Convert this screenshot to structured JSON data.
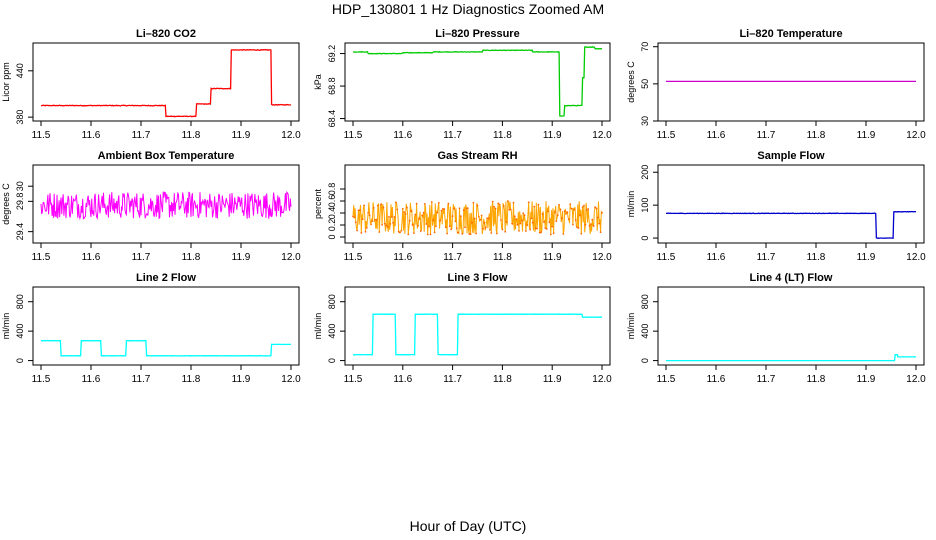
{
  "page": {
    "title": "HDP_130801  1 Hz Diagnostics Zoomed AM",
    "xlabel": "Hour of Day (UTC)"
  },
  "chart_data": [
    {
      "type": "line",
      "title": "Li–820 CO2",
      "ylabel": "Licor ppm",
      "color": "#ff0000",
      "xlim": [
        11.5,
        12.0
      ],
      "x_ticks": [
        "11.5",
        "11.6",
        "11.7",
        "11.8",
        "11.9",
        "12.0"
      ],
      "ylim": [
        375,
        476
      ],
      "y_ticks": [
        380,
        440
      ],
      "noise": 0.8,
      "segments": [
        [
          11.5,
          11.75,
          395
        ],
        [
          11.75,
          11.81,
          381
        ],
        [
          11.81,
          11.84,
          397
        ],
        [
          11.84,
          11.88,
          417
        ],
        [
          11.88,
          11.96,
          467
        ],
        [
          11.96,
          12.0,
          396
        ]
      ]
    },
    {
      "type": "line",
      "title": "Li–820 Pressure",
      "ylabel": "kPa",
      "color": "#00cc00",
      "xlim": [
        11.5,
        12.0
      ],
      "x_ticks": [
        "11.5",
        "11.6",
        "11.7",
        "11.8",
        "11.9",
        "12.0"
      ],
      "ylim": [
        68.37,
        69.33
      ],
      "y_ticks": [
        68.4,
        68.8,
        69.2
      ],
      "noise": 0.006,
      "segments": [
        [
          11.5,
          11.53,
          69.22
        ],
        [
          11.53,
          11.6,
          69.2
        ],
        [
          11.6,
          11.66,
          69.21
        ],
        [
          11.66,
          11.76,
          69.22
        ],
        [
          11.76,
          11.86,
          69.24
        ],
        [
          11.86,
          11.915,
          69.22
        ],
        [
          11.915,
          11.925,
          68.43
        ],
        [
          11.925,
          11.96,
          68.56
        ],
        [
          11.96,
          11.965,
          68.9
        ],
        [
          11.965,
          11.985,
          69.28
        ],
        [
          11.985,
          12.0,
          69.26
        ]
      ]
    },
    {
      "type": "line",
      "title": "Li–820 Temperature",
      "ylabel": "degrees C",
      "color": "#cc00cc",
      "xlim": [
        11.5,
        12.0
      ],
      "x_ticks": [
        "11.5",
        "11.6",
        "11.7",
        "11.8",
        "11.9",
        "12.0"
      ],
      "ylim": [
        30,
        72
      ],
      "y_ticks": [
        30,
        50,
        70
      ],
      "noise": 0,
      "segments": [
        [
          11.5,
          12.0,
          51.3
        ]
      ]
    },
    {
      "type": "line",
      "title": "Ambient Box Temperature",
      "ylabel": "degrees C",
      "color": "#ff00ff",
      "xlim": [
        11.5,
        12.0
      ],
      "x_ticks": [
        "11.5",
        "11.6",
        "11.7",
        "11.8",
        "11.9",
        "12.0"
      ],
      "ylim": [
        29.25,
        30.28
      ],
      "y_ticks": [
        29.4,
        29.8,
        30.0
      ],
      "noise": 0.18,
      "dense": true,
      "segments": [
        [
          11.5,
          12.0,
          29.75
        ]
      ]
    },
    {
      "type": "line",
      "title": "Gas Stream RH",
      "ylabel": "percent",
      "color": "#ffa500",
      "marker_color": "#ff6600",
      "xlim": [
        11.5,
        12.0
      ],
      "x_ticks": [
        "11.5",
        "11.6",
        "11.7",
        "11.8",
        "11.9",
        "12.0"
      ],
      "ylim": [
        -0.1,
        1.2
      ],
      "y_ticks": [
        0.0,
        0.2,
        0.4,
        0.6,
        0.8
      ],
      "noise": 0.28,
      "dense": true,
      "points": true,
      "segments": [
        [
          11.5,
          12.0,
          0.32
        ]
      ]
    },
    {
      "type": "line",
      "title": "Sample Flow",
      "ylabel": "ml/min",
      "color": "#0000cc",
      "xlim": [
        11.5,
        12.0
      ],
      "x_ticks": [
        "11.5",
        "11.6",
        "11.7",
        "11.8",
        "11.9",
        "12.0"
      ],
      "ylim": [
        -15,
        222
      ],
      "y_ticks": [
        0,
        100,
        200
      ],
      "noise": 1.2,
      "segments": [
        [
          11.5,
          11.92,
          75
        ],
        [
          11.92,
          11.955,
          0
        ],
        [
          11.955,
          12.0,
          80
        ]
      ]
    },
    {
      "type": "line",
      "title": "Line 2 Flow",
      "ylabel": "ml/min",
      "color": "#00ffff",
      "xlim": [
        11.5,
        12.0
      ],
      "x_ticks": [
        "11.5",
        "11.6",
        "11.7",
        "11.8",
        "11.9",
        "12.0"
      ],
      "ylim": [
        -60,
        1000
      ],
      "y_ticks": [
        0,
        400,
        800
      ],
      "noise": 3,
      "segments": [
        [
          11.5,
          11.54,
          270
        ],
        [
          11.54,
          11.58,
          65
        ],
        [
          11.58,
          11.62,
          270
        ],
        [
          11.62,
          11.67,
          65
        ],
        [
          11.67,
          11.71,
          270
        ],
        [
          11.71,
          11.96,
          65
        ],
        [
          11.96,
          12.0,
          220
        ]
      ]
    },
    {
      "type": "line",
      "title": "Line 3 Flow",
      "ylabel": "ml/min",
      "color": "#00ffff",
      "xlim": [
        11.5,
        12.0
      ],
      "x_ticks": [
        "11.5",
        "11.6",
        "11.7",
        "11.8",
        "11.9",
        "12.0"
      ],
      "ylim": [
        -60,
        1000
      ],
      "y_ticks": [
        0,
        400,
        800
      ],
      "noise": 3,
      "segments": [
        [
          11.5,
          11.54,
          80
        ],
        [
          11.54,
          11.585,
          630
        ],
        [
          11.585,
          11.625,
          80
        ],
        [
          11.625,
          11.67,
          630
        ],
        [
          11.67,
          11.71,
          80
        ],
        [
          11.71,
          11.96,
          630
        ],
        [
          11.96,
          12.0,
          590
        ]
      ]
    },
    {
      "type": "line",
      "title": "Line 4 (LT) Flow",
      "ylabel": "ml/min",
      "color": "#00ffff",
      "xlim": [
        11.5,
        12.0
      ],
      "x_ticks": [
        "11.5",
        "11.6",
        "11.7",
        "11.8",
        "11.9",
        "12.0"
      ],
      "ylim": [
        -60,
        1000
      ],
      "y_ticks": [
        0,
        400,
        800
      ],
      "noise": 0,
      "segments": [
        [
          11.5,
          11.958,
          0
        ],
        [
          11.958,
          11.963,
          80
        ],
        [
          11.963,
          12.0,
          50
        ]
      ]
    }
  ]
}
